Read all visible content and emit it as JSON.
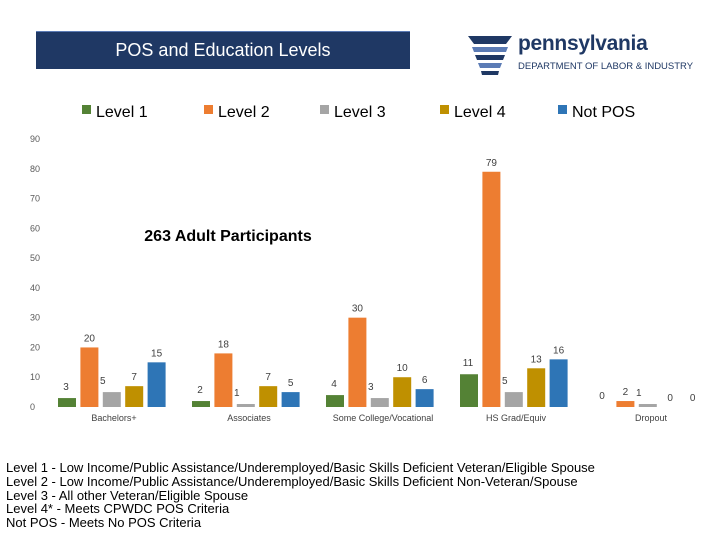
{
  "slide": {
    "title": "POS and Education Levels"
  },
  "logo": {
    "name": "pennsylvania",
    "department": "DEPARTMENT OF LABOR & INDUSTRY"
  },
  "colors": {
    "title_bg": "#1f3864",
    "level1": "#548235",
    "level2": "#ed7d31",
    "level3": "#a5a5a5",
    "level4": "#bf9000",
    "not_pos": "#2e75b6"
  },
  "notes": [
    "Level 1 - Low Income/Public Assistance/Underemployed/Basic Skills Deficient Veteran/Eligible Spouse",
    "Level 2 - Low Income/Public Assistance/Underemployed/Basic Skills Deficient Non-Veteran/Spouse",
    "Level 3 - All other Veteran/Eligible Spouse",
    "Level 4* - Meets CPWDC POS Criteria",
    "Not POS - Meets No POS Criteria"
  ],
  "chart_data": {
    "type": "bar",
    "annotation": "263 Adult Participants",
    "categories": [
      "Bachelors+",
      "Associates",
      "Some College/Vocational",
      "HS Grad/Equiv",
      "Dropout"
    ],
    "series": [
      {
        "name": "Level 1",
        "color": "#548235",
        "values": [
          3,
          2,
          4,
          11,
          0
        ]
      },
      {
        "name": "Level 2",
        "color": "#ed7d31",
        "values": [
          20,
          18,
          30,
          79,
          2
        ]
      },
      {
        "name": "Level 3",
        "color": "#a5a5a5",
        "values": [
          5,
          1,
          3,
          5,
          1
        ]
      },
      {
        "name": "Level 4",
        "color": "#bf9000",
        "values": [
          7,
          7,
          10,
          13,
          0
        ]
      },
      {
        "name": "Not POS",
        "color": "#2e75b6",
        "values": [
          15,
          5,
          6,
          16,
          0
        ]
      }
    ],
    "y_ticks": [
      0,
      10,
      20,
      30,
      40,
      50,
      60,
      70,
      80,
      90
    ],
    "ylim": [
      0,
      90
    ],
    "legend_position": "top",
    "grid": false
  }
}
